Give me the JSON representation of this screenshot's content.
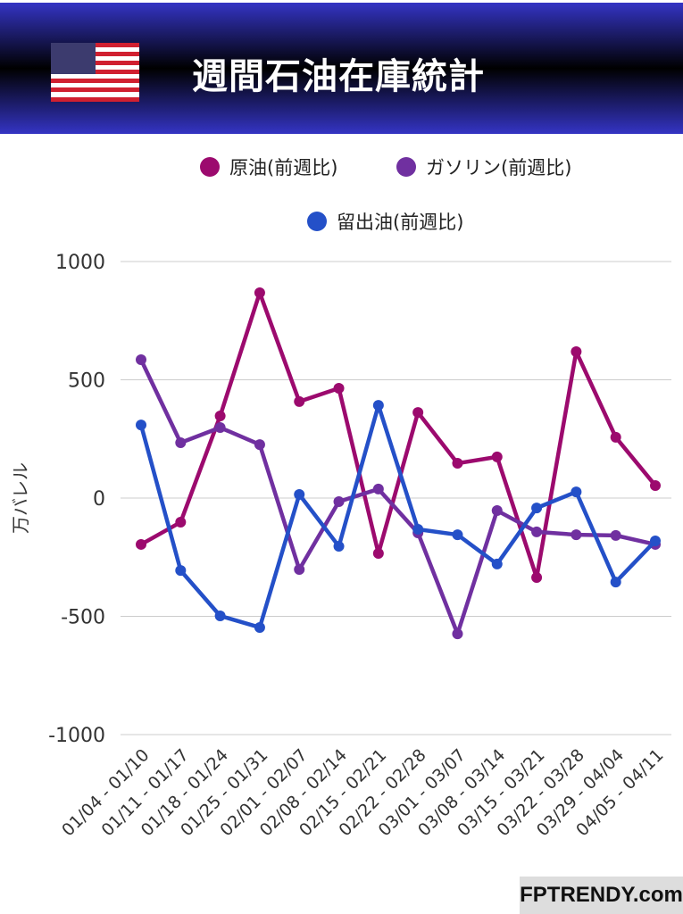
{
  "header": {
    "title": "週間石油在庫統計"
  },
  "brand": "FPTRENDY.com",
  "chart_data": {
    "type": "line",
    "title": "週間石油在庫統計",
    "ylabel": "万バレル",
    "xlabel": "",
    "ylim": [
      -1000,
      1000
    ],
    "yticks": [
      "1000",
      "500",
      "0",
      "-500",
      "-1000"
    ],
    "categories": [
      "01/04 - 01/10",
      "01/11 - 01/17",
      "01/18 - 01/24",
      "01/25 - 01/31",
      "02/01 - 02/07",
      "02/08 - 02/14",
      "02/15 - 02/21",
      "02/22 - 02/28",
      "03/01 - 03/07",
      "03/08 - 03/14",
      "03/15 - 03/21",
      "03/22 - 03/28",
      "03/29 - 04/04",
      "04/05 - 04/11"
    ],
    "legend_position": "top",
    "series": [
      {
        "name": "原油(前週比)",
        "color": "#9c0a6e",
        "values": [
          -196,
          -102,
          347,
          868,
          408,
          464,
          -234,
          362,
          147,
          174,
          -336,
          619,
          257,
          53
        ]
      },
      {
        "name": "ガソリン(前週比)",
        "color": "#7030a0",
        "values": [
          585,
          234,
          298,
          226,
          -302,
          -15,
          38,
          -147,
          -574,
          -53,
          -143,
          -155,
          -158,
          -196
        ]
      },
      {
        "name": "留出油(前週比)",
        "color": "#2450c8",
        "values": [
          309,
          -306,
          -498,
          -547,
          15,
          -204,
          392,
          -132,
          -155,
          -279,
          -42,
          26,
          -355,
          -181
        ]
      }
    ]
  }
}
